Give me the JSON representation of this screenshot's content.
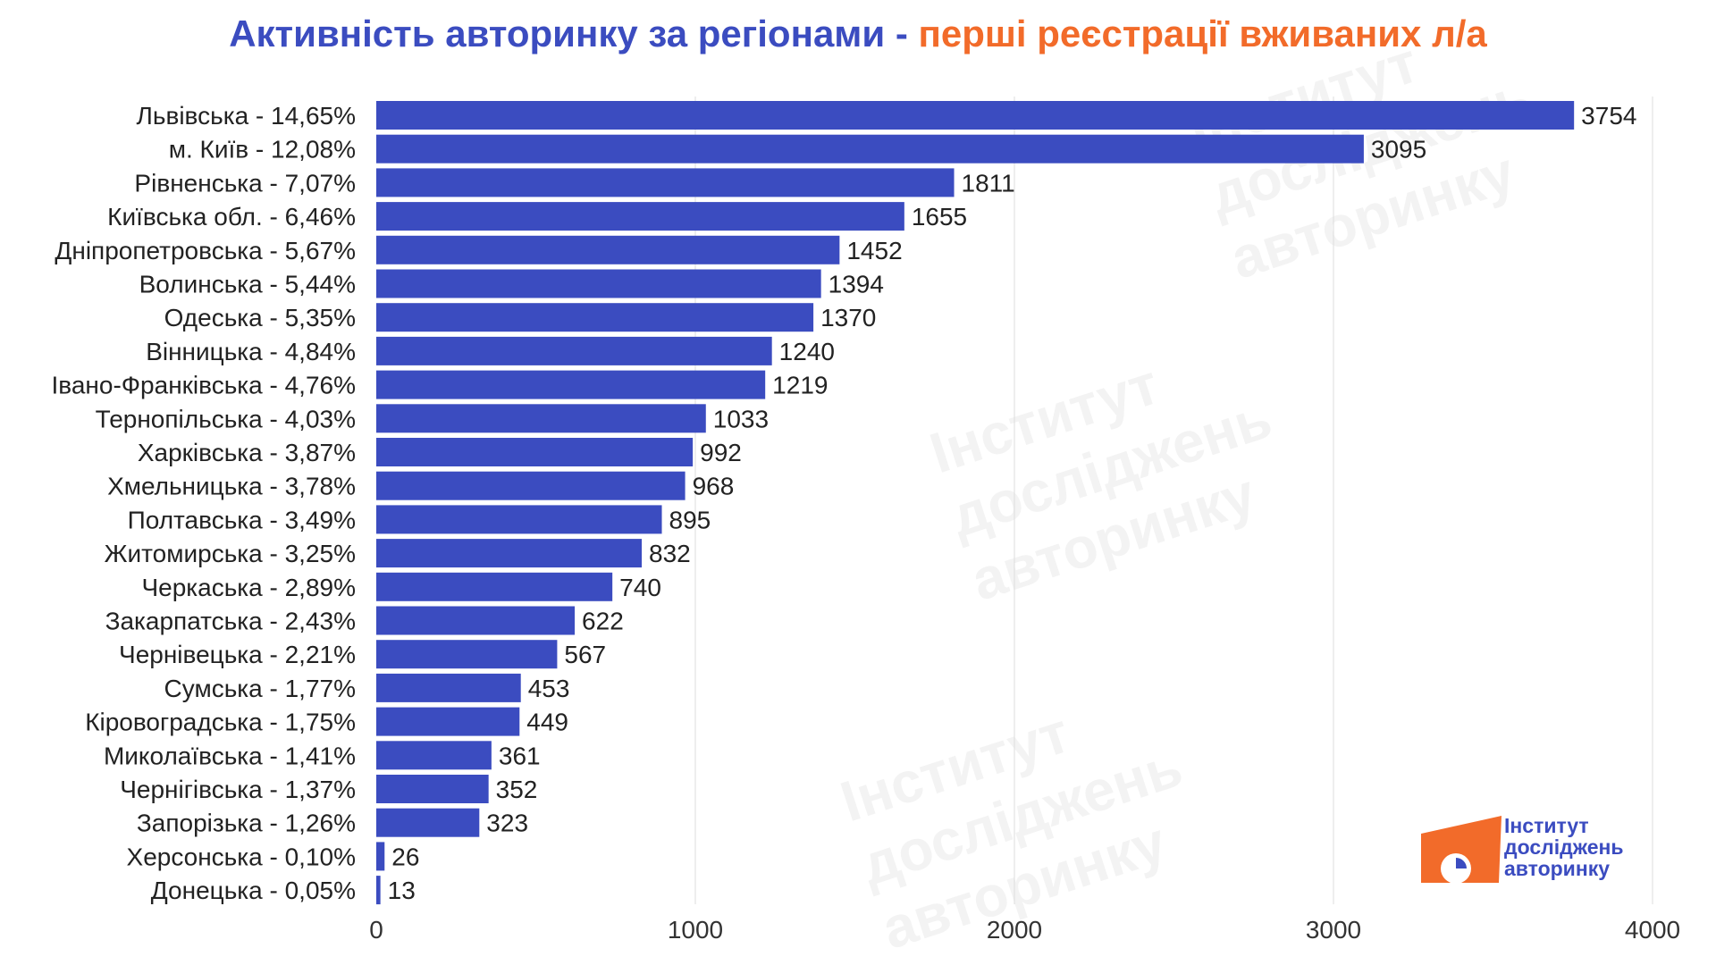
{
  "title": {
    "part1": "Активність авторинку за регіонами - ",
    "part2": "перші реєстрації вживаних л/а"
  },
  "logo": {
    "line1": "Інститут",
    "line2": "досліджень",
    "line3": "авторинку"
  },
  "colors": {
    "bar": "#3b4cc0",
    "title_primary": "#3b4cc0",
    "title_accent": "#f26b2a",
    "logo_orange": "#f26b2a",
    "grid": "#dddddd"
  },
  "chart_data": {
    "type": "bar",
    "orientation": "horizontal",
    "categories": [
      "Львівська - 14,65%",
      "м. Київ - 12,08%",
      "Рівненська - 7,07%",
      "Київська обл. - 6,46%",
      "Дніпропетровська - 5,67%",
      "Волинська - 5,44%",
      "Одеська - 5,35%",
      "Вінницька - 4,84%",
      "Івано-Франківська - 4,76%",
      "Тернопільська - 4,03%",
      "Харківська - 3,87%",
      "Хмельницька - 3,78%",
      "Полтавська - 3,49%",
      "Житомирська - 3,25%",
      "Черкаська - 2,89%",
      "Закарпатська - 2,43%",
      "Чернівецька - 2,21%",
      "Сумська - 1,77%",
      "Кіровоградська - 1,75%",
      "Миколаївська - 1,41%",
      "Чернігівська - 1,37%",
      "Запорізька - 1,26%",
      "Херсонська - 0,10%",
      "Донецька - 0,05%"
    ],
    "values": [
      3754,
      3095,
      1811,
      1655,
      1452,
      1394,
      1370,
      1240,
      1219,
      1033,
      992,
      968,
      895,
      832,
      740,
      622,
      567,
      453,
      449,
      361,
      352,
      323,
      26,
      13
    ],
    "xlim": [
      0,
      4000
    ],
    "xticks": [
      0,
      1000,
      2000,
      3000,
      4000
    ],
    "grid": true,
    "data_labels": true
  }
}
